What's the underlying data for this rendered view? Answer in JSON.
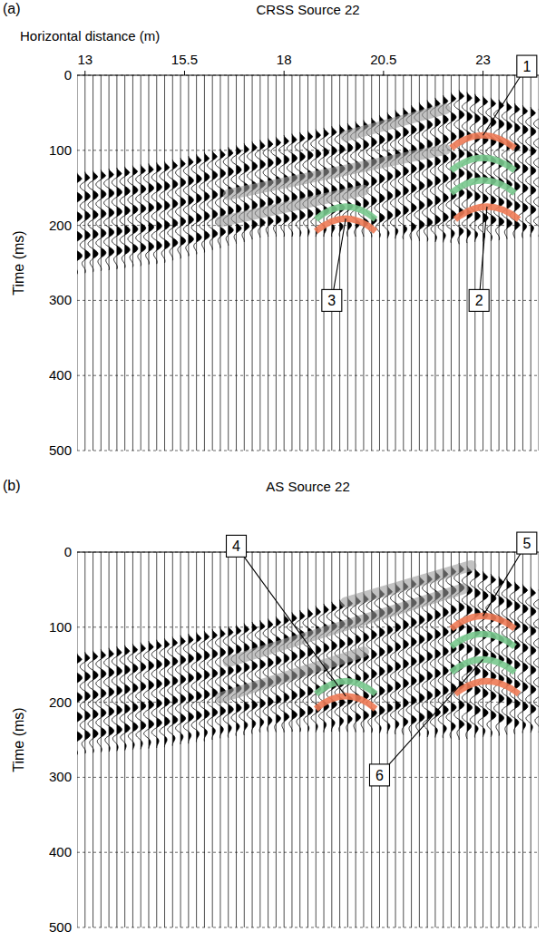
{
  "chart_data": [
    {
      "type": "seismogram",
      "panel_label": "(a)",
      "title": "CRSS Source 22",
      "x_label": "Horizontal distance (m)",
      "y_label": "Time (ms)",
      "xlim": [
        12.8,
        24.4
      ],
      "xticks": [
        13,
        15.5,
        18,
        20.5,
        23
      ],
      "ylim": [
        0,
        500
      ],
      "yticks": [
        0,
        100,
        200,
        300,
        400,
        500
      ],
      "grid": true,
      "traces": [
        12.8,
        13,
        13.2,
        13.4,
        13.6,
        13.8,
        14,
        14.2,
        14.4,
        14.6,
        14.8,
        15,
        15.2,
        15.4,
        15.6,
        15.8,
        16,
        16.2,
        16.4,
        16.6,
        16.8,
        17,
        17.2,
        17.4,
        17.6,
        17.8,
        18,
        18.2,
        18.4,
        18.6,
        18.8,
        19,
        19.2,
        19.4,
        19.6,
        19.8,
        20,
        20.2,
        20.4,
        20.6,
        20.8,
        21,
        21.2,
        21.4,
        21.6,
        21.8,
        22,
        22.2,
        22.4,
        22.6,
        22.8,
        23,
        23.2,
        23.4,
        23.6,
        23.8,
        24,
        24.2,
        24.4
      ],
      "signal_region": {
        "x": [
          12.8,
          15,
          17.5,
          20,
          22.4,
          24.4
        ],
        "t_start": [
          130,
          115,
          85,
          60,
          20,
          45
        ],
        "t_end": [
          265,
          250,
          215,
          215,
          225,
          215
        ]
      },
      "events": [
        {
          "x": [
            19.55,
            22.05
          ],
          "t": [
            81,
            45
          ],
          "color": "#9a9a9a"
        },
        {
          "x": [
            16.6,
            22.05
          ],
          "t": [
            159,
            99
          ],
          "color": "#9a9a9a"
        },
        {
          "x": [
            16.4,
            20
          ],
          "t": [
            195,
            153
          ],
          "color": "#9a9a9a"
        }
      ],
      "arcs": [
        {
          "x": 23.0,
          "t": 80,
          "half_width": 0.8,
          "color": "#ee7a55"
        },
        {
          "x": 23.0,
          "t": 110,
          "half_width": 0.8,
          "color": "#79c98e"
        },
        {
          "x": 23.0,
          "t": 140,
          "half_width": 0.8,
          "color": "#79c98e"
        },
        {
          "x": 23.1,
          "t": 175,
          "half_width": 0.8,
          "color": "#ee7a55"
        },
        {
          "x": 19.55,
          "t": 175,
          "half_width": 0.75,
          "color": "#79c98e"
        },
        {
          "x": 19.55,
          "t": 191,
          "half_width": 0.75,
          "color": "#ee7a55"
        }
      ],
      "annotations": [
        {
          "text": "1",
          "x": 24.1,
          "t": -12,
          "arc": 0
        },
        {
          "text": "2",
          "x": 22.9,
          "t": 300,
          "arc": 3
        },
        {
          "text": "3",
          "x": 19.2,
          "t": 300,
          "arc": 5
        }
      ]
    },
    {
      "type": "seismogram",
      "panel_label": "(b)",
      "title": "AS Source 22",
      "y_label": "Time (ms)",
      "xlim": [
        12.8,
        24.4
      ],
      "ylim": [
        0,
        500
      ],
      "yticks": [
        0,
        100,
        200,
        300,
        400,
        500
      ],
      "grid": true,
      "tick_labels": "y",
      "traces": [
        12.8,
        13,
        13.2,
        13.4,
        13.6,
        13.8,
        14,
        14.2,
        14.4,
        14.6,
        14.8,
        15,
        15.2,
        15.4,
        15.6,
        15.8,
        16,
        16.2,
        16.4,
        16.6,
        16.8,
        17,
        17.2,
        17.4,
        17.6,
        17.8,
        18,
        18.2,
        18.4,
        18.6,
        18.8,
        19,
        19.2,
        19.4,
        19.6,
        19.8,
        20,
        20.2,
        20.4,
        20.6,
        20.8,
        21,
        21.2,
        21.4,
        21.6,
        21.8,
        22,
        22.2,
        22.4,
        22.6,
        22.8,
        23,
        23.2,
        23.4,
        23.6,
        23.8,
        24,
        24.2,
        24.4
      ],
      "signal_region": {
        "x": [
          12.8,
          15,
          17.5,
          20,
          22.4,
          24.4
        ],
        "t_start": [
          135,
          115,
          90,
          55,
          15,
          50
        ],
        "t_end": [
          270,
          260,
          240,
          240,
          250,
          240
        ]
      },
      "events": [
        {
          "x": [
            19.55,
            22.7
          ],
          "t": [
            67,
            18
          ],
          "color": "#9a9a9a"
        },
        {
          "x": [
            16.6,
            22.5
          ],
          "t": [
            146,
            49
          ],
          "color": "#9a9a9a"
        },
        {
          "x": [
            16.4,
            20
          ],
          "t": [
            194,
            133
          ],
          "color": "#9a9a9a"
        }
      ],
      "arcs": [
        {
          "x": 23.0,
          "t": 85,
          "half_width": 0.8,
          "color": "#ee7a55"
        },
        {
          "x": 23.0,
          "t": 109,
          "half_width": 0.8,
          "color": "#79c98e"
        },
        {
          "x": 23.0,
          "t": 143,
          "half_width": 0.8,
          "color": "#79c98e"
        },
        {
          "x": 23.1,
          "t": 172,
          "half_width": 0.8,
          "color": "#ee7a55"
        },
        {
          "x": 19.55,
          "t": 172,
          "half_width": 0.75,
          "color": "#79c98e"
        },
        {
          "x": 19.55,
          "t": 192,
          "half_width": 0.75,
          "color": "#ee7a55"
        }
      ],
      "annotations": [
        {
          "text": "4",
          "x": 16.8,
          "t": -8,
          "arc": 5
        },
        {
          "text": "5",
          "x": 24.1,
          "t": -12,
          "arc": 0
        },
        {
          "text": "6",
          "x": 20.4,
          "t": 297,
          "arc": 2
        }
      ]
    }
  ]
}
